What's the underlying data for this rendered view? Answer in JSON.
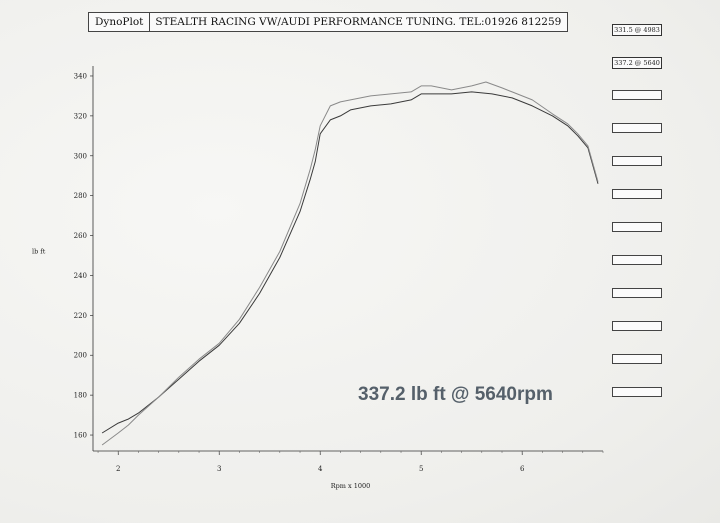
{
  "header": {
    "brand": "DynoPlot",
    "title": "STEALTH RACING     VW/AUDI PERFORMANCE TUNING.     TEL:01926 812259"
  },
  "readouts": [
    "331.5 @ 4983",
    "337.2 @ 5640"
  ],
  "chart_data": {
    "type": "line",
    "title": "",
    "xlabel": "Rpm x 1000",
    "ylabel": "lb ft",
    "xlim": [
      1.75,
      6.8
    ],
    "ylim": [
      152,
      345
    ],
    "xticks": [
      2,
      3,
      4,
      5,
      6
    ],
    "yticks": [
      160,
      180,
      200,
      220,
      240,
      260,
      280,
      300,
      320,
      340
    ],
    "annotation": "337.2 lb ft @ 5640rpm",
    "series": [
      {
        "color": "#3a3a3a",
        "x": [
          1.84,
          2.0,
          2.1,
          2.2,
          2.4,
          2.6,
          2.8,
          3.0,
          3.2,
          3.4,
          3.6,
          3.8,
          3.9,
          3.95,
          4.0,
          4.1,
          4.2,
          4.3,
          4.5,
          4.7,
          4.9,
          5.0,
          5.1,
          5.3,
          5.5,
          5.7,
          5.9,
          6.1,
          6.3,
          6.45,
          6.55,
          6.65,
          6.75
        ],
        "y": [
          161,
          166,
          168,
          171,
          179,
          188,
          197,
          205,
          216,
          231,
          249,
          272,
          288,
          297,
          311,
          318,
          320,
          323,
          325,
          326,
          328,
          331,
          331,
          331,
          332,
          331,
          329,
          325,
          320,
          315,
          310,
          304,
          286
        ]
      },
      {
        "color": "#8a8a8a",
        "x": [
          1.84,
          2.0,
          2.1,
          2.2,
          2.4,
          2.6,
          2.8,
          3.0,
          3.2,
          3.4,
          3.6,
          3.8,
          3.9,
          3.95,
          4.0,
          4.1,
          4.2,
          4.3,
          4.5,
          4.7,
          4.9,
          5.0,
          5.1,
          5.3,
          5.5,
          5.64,
          5.8,
          5.9,
          6.1,
          6.3,
          6.45,
          6.55,
          6.65,
          6.75
        ],
        "y": [
          155,
          161,
          165,
          170,
          179,
          189,
          198,
          206,
          218,
          234,
          252,
          276,
          293,
          303,
          315,
          325,
          327,
          328,
          330,
          331,
          332,
          335,
          335,
          333,
          335,
          337,
          334,
          332,
          328,
          321,
          316,
          311,
          305,
          287
        ]
      }
    ]
  }
}
